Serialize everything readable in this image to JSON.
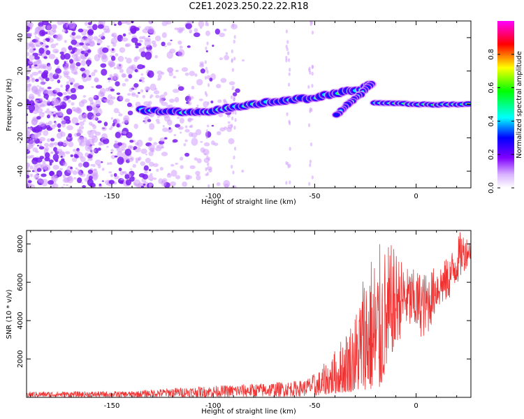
{
  "title": "C2E1.2023.250.22.22.R18",
  "chart_data": [
    {
      "type": "heatmap",
      "title": "",
      "xlabel": "Height of straight line (km)",
      "ylabel": "Frequency (Hz)",
      "xlim": [
        -192,
        27
      ],
      "ylim": [
        -50,
        50
      ],
      "xticks": [
        -150,
        -100,
        -50,
        0
      ],
      "yticks": [
        -40,
        -20,
        0,
        20,
        40
      ],
      "colorbar": {
        "label": "Normalized spectral amplitude",
        "range": [
          0.0,
          1.0
        ],
        "ticks": [
          "0.0",
          "0.2",
          "0.4",
          "0.6",
          "0.8"
        ],
        "colormap": [
          "#ffffff",
          "#d9b3ff",
          "#8000ff",
          "#0000ff",
          "#00ffff",
          "#00ff00",
          "#ffff00",
          "#ff0000",
          "#ff00ff"
        ]
      },
      "ridge": [
        {
          "x": -135,
          "y": -3.5
        },
        {
          "x": -120,
          "y": -4.5
        },
        {
          "x": -105,
          "y": -5
        },
        {
          "x": -95,
          "y": -3
        },
        {
          "x": -80,
          "y": 0
        },
        {
          "x": -65,
          "y": 2.5
        },
        {
          "x": -50,
          "y": 4
        },
        {
          "x": -38,
          "y": 7
        },
        {
          "x": -28,
          "y": 9
        },
        {
          "x": -22,
          "y": 12
        },
        {
          "x": -30,
          "y": 0
        },
        {
          "x": -40,
          "y": -7
        },
        {
          "x": -20,
          "y": 1
        },
        {
          "x": 0,
          "y": 0
        },
        {
          "x": 27,
          "y": 0
        }
      ],
      "noise_region": {
        "x_range": [
          -192,
          -85
        ],
        "y_range": [
          -50,
          50
        ],
        "amplitude": "low (0.0-0.2)"
      }
    },
    {
      "type": "line",
      "title": "",
      "xlabel": "Height of straight line (km)",
      "ylabel": "SNR (10 * v/v)",
      "xlim": [
        -192,
        27
      ],
      "ylim": [
        0,
        8700
      ],
      "xticks": [
        -150,
        -100,
        -50,
        0
      ],
      "yticks": [
        2000,
        4000,
        6000,
        8000
      ],
      "color": "#ee3333",
      "envelope": [
        {
          "x": -192,
          "low": 0,
          "high": 300
        },
        {
          "x": -140,
          "low": 0,
          "high": 320
        },
        {
          "x": -120,
          "low": 0,
          "high": 500
        },
        {
          "x": -100,
          "low": 0,
          "high": 600
        },
        {
          "x": -75,
          "low": 0,
          "high": 750
        },
        {
          "x": -55,
          "low": 50,
          "high": 900
        },
        {
          "x": -48,
          "low": 100,
          "high": 1400
        },
        {
          "x": -40,
          "low": 200,
          "high": 2500
        },
        {
          "x": -30,
          "low": 300,
          "high": 4500
        },
        {
          "x": -25,
          "low": 400,
          "high": 7400
        },
        {
          "x": -18,
          "low": 300,
          "high": 8000
        },
        {
          "x": -12,
          "low": 2300,
          "high": 8000
        },
        {
          "x": -5,
          "low": 3500,
          "high": 6800
        },
        {
          "x": 5,
          "low": 3000,
          "high": 6500
        },
        {
          "x": 10,
          "low": 4500,
          "high": 6900
        },
        {
          "x": 16,
          "low": 5000,
          "high": 7300
        },
        {
          "x": 22,
          "low": 6200,
          "high": 8700
        },
        {
          "x": 27,
          "low": 7200,
          "high": 8200
        }
      ]
    }
  ]
}
